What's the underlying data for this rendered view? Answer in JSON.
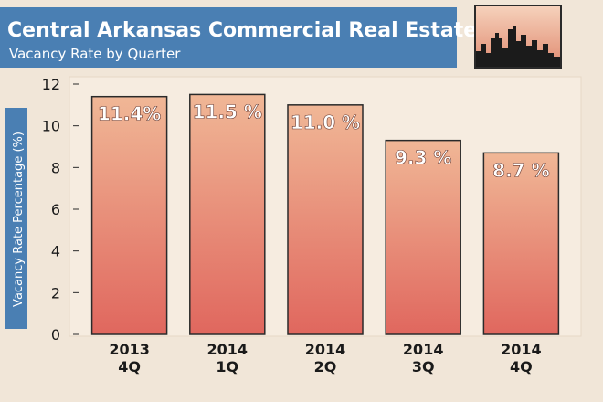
{
  "colors": {
    "background": "#f1e6d8",
    "banner": "#4a7fb3",
    "bar_top": "#f0b796",
    "bar_bottom": "#e0675e",
    "bar_stroke": "#2a2a2a"
  },
  "icons": {
    "logo": "city-skyline-icon"
  },
  "chart_data": {
    "type": "bar",
    "title": "Central Arkansas Commercial Real Estate",
    "subtitle": "Vacancy Rate by Quarter",
    "xlabel": "",
    "ylabel": "Vacancy Rate Percentage (%)",
    "ylim": [
      0,
      12
    ],
    "yticks": [
      0,
      2,
      4,
      6,
      8,
      10,
      12
    ],
    "grid": false,
    "categories": [
      [
        "2013",
        "4Q"
      ],
      [
        "2014",
        "1Q"
      ],
      [
        "2014",
        "2Q"
      ],
      [
        "2014",
        "3Q"
      ],
      [
        "2014",
        "4Q"
      ]
    ],
    "values": [
      11.4,
      11.5,
      11.0,
      9.3,
      8.7
    ],
    "data_labels": [
      "11.4%",
      "11.5 %",
      "11.0 %",
      "9.3 %",
      "8.7 %"
    ]
  }
}
